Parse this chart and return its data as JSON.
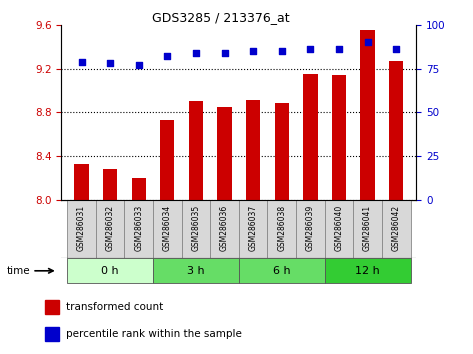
{
  "title": "GDS3285 / 213376_at",
  "samples": [
    "GSM286031",
    "GSM286032",
    "GSM286033",
    "GSM286034",
    "GSM286035",
    "GSM286036",
    "GSM286037",
    "GSM286038",
    "GSM286039",
    "GSM286040",
    "GSM286041",
    "GSM286042"
  ],
  "bar_values": [
    8.33,
    8.28,
    8.2,
    8.73,
    8.9,
    8.85,
    8.91,
    8.89,
    9.15,
    9.14,
    9.55,
    9.27
  ],
  "percentile_values": [
    79,
    78,
    77,
    82,
    84,
    84,
    85,
    85,
    86,
    86,
    90,
    86
  ],
  "bar_color": "#cc0000",
  "percentile_color": "#0000cc",
  "ylim_left": [
    8.0,
    9.6
  ],
  "ylim_right": [
    0,
    100
  ],
  "yticks_left": [
    8.0,
    8.4,
    8.8,
    9.2,
    9.6
  ],
  "yticks_right": [
    0,
    25,
    50,
    75,
    100
  ],
  "time_group_labels": [
    "0 h",
    "3 h",
    "6 h",
    "12 h"
  ],
  "time_group_colors": [
    "#ccffcc",
    "#66dd66",
    "#66dd66",
    "#33cc33"
  ],
  "time_group_starts": [
    0,
    3,
    6,
    9
  ],
  "time_group_ends": [
    3,
    6,
    9,
    12
  ],
  "legend_bar_label": "transformed count",
  "legend_pct_label": "percentile rank within the sample",
  "xlabel_time": "time",
  "background_color": "#ffffff",
  "sample_box_color": "#d8d8d8",
  "sample_box_edge": "#888888"
}
